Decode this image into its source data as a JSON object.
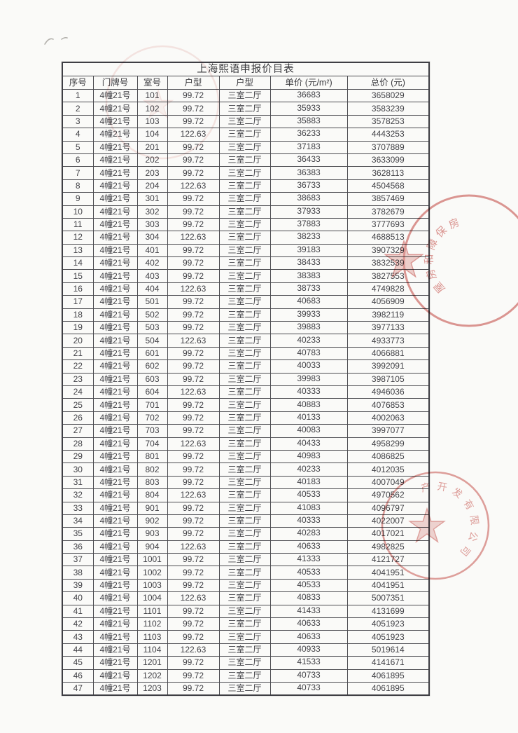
{
  "page": {
    "title": "上海熙语申报价目表"
  },
  "table": {
    "columns": [
      "序号",
      "门牌号",
      "室号",
      "户型",
      "户型",
      "单价 (元/m²)",
      "总价 (元)"
    ],
    "rows": [
      [
        "1",
        "4幢21号",
        "101",
        "99.72",
        "三室二厅",
        "36683",
        "3658029"
      ],
      [
        "2",
        "4幢21号",
        "102",
        "99.72",
        "三室二厅",
        "35933",
        "3583239"
      ],
      [
        "3",
        "4幢21号",
        "103",
        "99.72",
        "三室二厅",
        "35883",
        "3578253"
      ],
      [
        "4",
        "4幢21号",
        "104",
        "122.63",
        "三室二厅",
        "36233",
        "4443253"
      ],
      [
        "5",
        "4幢21号",
        "201",
        "99.72",
        "三室二厅",
        "37183",
        "3707889"
      ],
      [
        "6",
        "4幢21号",
        "202",
        "99.72",
        "三室二厅",
        "36433",
        "3633099"
      ],
      [
        "7",
        "4幢21号",
        "203",
        "99.72",
        "三室二厅",
        "36383",
        "3628113"
      ],
      [
        "8",
        "4幢21号",
        "204",
        "122.63",
        "三室二厅",
        "36733",
        "4504568"
      ],
      [
        "9",
        "4幢21号",
        "301",
        "99.72",
        "三室二厅",
        "38683",
        "3857469"
      ],
      [
        "10",
        "4幢21号",
        "302",
        "99.72",
        "三室二厅",
        "37933",
        "3782679"
      ],
      [
        "11",
        "4幢21号",
        "303",
        "99.72",
        "三室二厅",
        "37883",
        "3777693"
      ],
      [
        "12",
        "4幢21号",
        "304",
        "122.63",
        "三室二厅",
        "38233",
        "4688513"
      ],
      [
        "13",
        "4幢21号",
        "401",
        "99.72",
        "三室二厅",
        "39183",
        "3907329"
      ],
      [
        "14",
        "4幢21号",
        "402",
        "99.72",
        "三室二厅",
        "38433",
        "3832539"
      ],
      [
        "15",
        "4幢21号",
        "403",
        "99.72",
        "三室二厅",
        "38383",
        "3827553"
      ],
      [
        "16",
        "4幢21号",
        "404",
        "122.63",
        "三室二厅",
        "38733",
        "4749828"
      ],
      [
        "17",
        "4幢21号",
        "501",
        "99.72",
        "三室二厅",
        "40683",
        "4056909"
      ],
      [
        "18",
        "4幢21号",
        "502",
        "99.72",
        "三室二厅",
        "39933",
        "3982119"
      ],
      [
        "19",
        "4幢21号",
        "503",
        "99.72",
        "三室二厅",
        "39883",
        "3977133"
      ],
      [
        "20",
        "4幢21号",
        "504",
        "122.63",
        "三室二厅",
        "40233",
        "4933773"
      ],
      [
        "21",
        "4幢21号",
        "601",
        "99.72",
        "三室二厅",
        "40783",
        "4066881"
      ],
      [
        "22",
        "4幢21号",
        "602",
        "99.72",
        "三室二厅",
        "40033",
        "3992091"
      ],
      [
        "23",
        "4幢21号",
        "603",
        "99.72",
        "三室二厅",
        "39983",
        "3987105"
      ],
      [
        "24",
        "4幢21号",
        "604",
        "122.63",
        "三室二厅",
        "40333",
        "4946036"
      ],
      [
        "25",
        "4幢21号",
        "701",
        "99.72",
        "三室二厅",
        "40883",
        "4076853"
      ],
      [
        "26",
        "4幢21号",
        "702",
        "99.72",
        "三室二厅",
        "40133",
        "4002063"
      ],
      [
        "27",
        "4幢21号",
        "703",
        "99.72",
        "三室二厅",
        "40083",
        "3997077"
      ],
      [
        "28",
        "4幢21号",
        "704",
        "122.63",
        "三室二厅",
        "40433",
        "4958299"
      ],
      [
        "29",
        "4幢21号",
        "801",
        "99.72",
        "三室二厅",
        "40983",
        "4086825"
      ],
      [
        "30",
        "4幢21号",
        "802",
        "99.72",
        "三室二厅",
        "40233",
        "4012035"
      ],
      [
        "31",
        "4幢21号",
        "803",
        "99.72",
        "三室二厅",
        "40183",
        "4007049"
      ],
      [
        "32",
        "4幢21号",
        "804",
        "122.63",
        "三室二厅",
        "40533",
        "4970562"
      ],
      [
        "33",
        "4幢21号",
        "901",
        "99.72",
        "三室二厅",
        "41083",
        "4096797"
      ],
      [
        "34",
        "4幢21号",
        "902",
        "99.72",
        "三室二厅",
        "40333",
        "4022007"
      ],
      [
        "35",
        "4幢21号",
        "903",
        "99.72",
        "三室二厅",
        "40283",
        "4017021"
      ],
      [
        "36",
        "4幢21号",
        "904",
        "122.63",
        "三室二厅",
        "40633",
        "4982825"
      ],
      [
        "37",
        "4幢21号",
        "1001",
        "99.72",
        "三室二厅",
        "41333",
        "4121727"
      ],
      [
        "38",
        "4幢21号",
        "1002",
        "99.72",
        "三室二厅",
        "40533",
        "4041951"
      ],
      [
        "39",
        "4幢21号",
        "1003",
        "99.72",
        "三室二厅",
        "40533",
        "4041951"
      ],
      [
        "40",
        "4幢21号",
        "1004",
        "122.63",
        "三室二厅",
        "40833",
        "5007351"
      ],
      [
        "41",
        "4幢21号",
        "1101",
        "99.72",
        "三室二厅",
        "41433",
        "4131699"
      ],
      [
        "42",
        "4幢21号",
        "1102",
        "99.72",
        "三室二厅",
        "40633",
        "4051923"
      ],
      [
        "43",
        "4幢21号",
        "1103",
        "99.72",
        "三室二厅",
        "40633",
        "4051923"
      ],
      [
        "44",
        "4幢21号",
        "1104",
        "122.63",
        "三室二厅",
        "40933",
        "5019614"
      ],
      [
        "45",
        "4幢21号",
        "1201",
        "99.72",
        "三室二厅",
        "41533",
        "4141671"
      ],
      [
        "46",
        "4幢21号",
        "1202",
        "99.72",
        "三室二厅",
        "40733",
        "4061895"
      ],
      [
        "47",
        "4幢21号",
        "1203",
        "99.72",
        "三室二厅",
        "40733",
        "4061895"
      ]
    ]
  },
  "stamps": {
    "seal_color": "#c5443e",
    "housing_seal_visible_text": "房保障和房屋",
    "company_seal_visible_text": "产开发有限公司",
    "faint_seal_visible_text": ""
  }
}
